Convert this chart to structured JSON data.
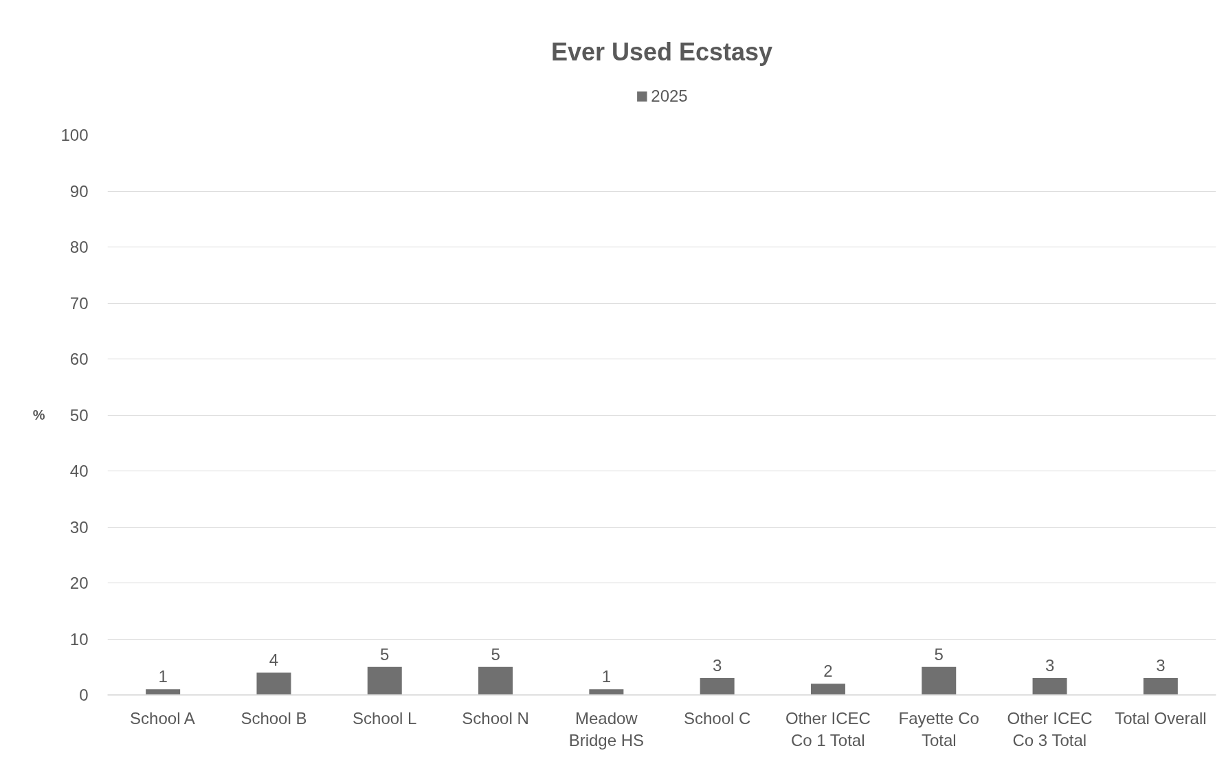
{
  "chart_data": {
    "type": "bar",
    "title": "Ever Used Ecstasy",
    "ylabel": "%",
    "categories": [
      "School A",
      "School B",
      "School L",
      "School N",
      "Meadow Bridge HS",
      "School C",
      "Other ICEC Co 1 Total",
      "Fayette Co Total",
      "Other ICEC Co 3 Total",
      "Total Overall"
    ],
    "series": [
      {
        "name": "2025",
        "color": "#707070",
        "values": [
          1,
          4,
          5,
          5,
          1,
          3,
          2,
          5,
          3,
          3
        ]
      }
    ],
    "ylim": [
      0,
      100
    ],
    "yticks": [
      0,
      10,
      20,
      30,
      40,
      50,
      60,
      70,
      80,
      90,
      100
    ],
    "grid": "y",
    "legend": "top",
    "data_labels": true
  }
}
